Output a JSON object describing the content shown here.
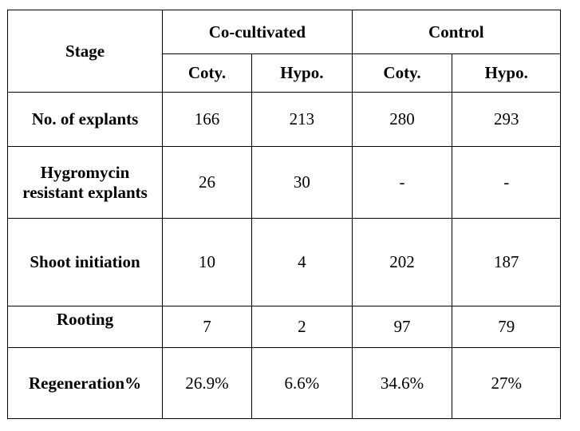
{
  "table": {
    "stage_header": "Stage",
    "groups": [
      "Co-cultivated",
      "Control"
    ],
    "subheaders": [
      "Coty.",
      "Hypo.",
      "Coty.",
      "Hypo."
    ],
    "rows": [
      {
        "label": "No. of explants",
        "values": [
          "166",
          "213",
          "280",
          "293"
        ]
      },
      {
        "label_line1": "Hygromycin",
        "label_line2": "resistant explants",
        "values": [
          "26",
          "30",
          "-",
          "-"
        ]
      },
      {
        "label": "Shoot initiation",
        "values": [
          "10",
          "4",
          "202",
          "187"
        ]
      },
      {
        "label": "Rooting",
        "values": [
          "7",
          "2",
          "97",
          "79"
        ]
      },
      {
        "label": "Regeneration%",
        "values": [
          "26.9%",
          "6.6%",
          "34.6%",
          "27%"
        ]
      }
    ]
  }
}
